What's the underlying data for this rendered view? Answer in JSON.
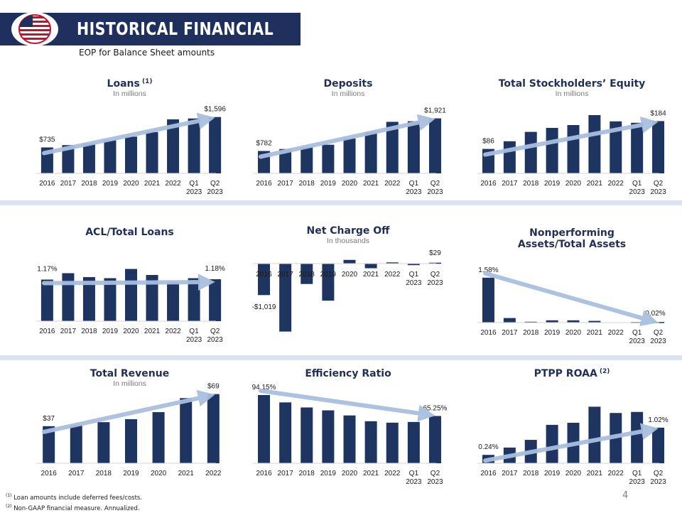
{
  "header": {
    "title": "HISTORICAL FINANCIAL",
    "subtitle": "EOP for Balance Sheet amounts"
  },
  "colors": {
    "bar": "#1f3561",
    "arrow": "#a9bfe0",
    "band": "#dbe3f1",
    "axis": "#d4d4d4",
    "title": "#1f2f57"
  },
  "footnotes": [
    {
      "mark": "(1)",
      "text": "Loan amounts include deferred fees/costs."
    },
    {
      "mark": "(2)",
      "text": "Non-GAAP financial measure. Annualized."
    }
  ],
  "page_number": "4",
  "chart_data": [
    {
      "type": "bar",
      "title": "Loans",
      "title_sup": "(1)",
      "subtitle": "In millions",
      "categories": [
        "2016",
        "2017",
        "2018",
        "2019",
        "2020",
        "2021",
        "2022",
        "Q1 2023",
        "Q2 2023"
      ],
      "values": [
        735,
        800,
        845,
        935,
        1040,
        1170,
        1530,
        1555,
        1596
      ],
      "ylim": [
        0,
        1650
      ],
      "data_labels": [
        {
          "index": 0,
          "text": "$735"
        },
        {
          "index": 8,
          "text": "$1,596"
        }
      ],
      "trend": "up"
    },
    {
      "type": "bar",
      "title": "Deposits",
      "title_sup": "",
      "subtitle": "In millions",
      "categories": [
        "2016",
        "2017",
        "2018",
        "2019",
        "2020",
        "2021",
        "2022",
        "Q1 2023",
        "Q2 2023"
      ],
      "values": [
        782,
        850,
        910,
        1000,
        1220,
        1450,
        1800,
        1820,
        1921
      ],
      "ylim": [
        0,
        1985
      ],
      "data_labels": [
        {
          "index": 0,
          "text": "$782"
        },
        {
          "index": 8,
          "text": "$1,921"
        }
      ],
      "trend": "up"
    },
    {
      "type": "bar",
      "title": "Total Stockholders’ Equity",
      "title_sup": "",
      "subtitle": "In millions",
      "categories": [
        "2016",
        "2017",
        "2018",
        "2019",
        "2020",
        "2021",
        "2022",
        "Q1 2023",
        "Q2 2023"
      ],
      "values": [
        86,
        113,
        146,
        160,
        170,
        205,
        183,
        178,
        184
      ],
      "ylim": [
        0,
        210
      ],
      "data_labels": [
        {
          "index": 0,
          "text": "$86"
        },
        {
          "index": 8,
          "text": "$184"
        }
      ],
      "trend": "up"
    },
    {
      "type": "bar",
      "title": "ACL/Total Loans",
      "title_sup": "",
      "subtitle": "",
      "categories": [
        "2016",
        "2017",
        "2018",
        "2019",
        "2020",
        "2021",
        "2022",
        "Q1 2023",
        "Q2 2023"
      ],
      "values": [
        1.17,
        1.35,
        1.24,
        1.21,
        1.47,
        1.3,
        1.1,
        1.21,
        1.18
      ],
      "ylim": [
        0,
        1.6
      ],
      "data_labels": [
        {
          "index": 0,
          "text": "1.17%"
        },
        {
          "index": 8,
          "text": "1.18%"
        }
      ],
      "trend": "flat"
    },
    {
      "type": "bar",
      "title": "Net Charge Off",
      "title_sup": "",
      "subtitle": "In thousands",
      "categories": [
        "2016",
        "2017",
        "2018",
        "2019",
        "2020",
        "2021",
        "2022",
        "Q1 2023",
        "Q2 2023"
      ],
      "values": [
        -1019,
        -2200,
        -660,
        -1200,
        120,
        -150,
        40,
        -50,
        29
      ],
      "ylim": [
        -2300,
        400
      ],
      "data_labels": [
        {
          "index": 0,
          "text": "-$1,019"
        },
        {
          "index": 8,
          "text": "$29"
        }
      ],
      "trend": "none"
    },
    {
      "type": "bar",
      "title": "Nonperforming",
      "title_line2": "Assets/Total Assets",
      "title_sup": "",
      "subtitle": "",
      "categories": [
        "2016",
        "2017",
        "2018",
        "2019",
        "2020",
        "2021",
        "2022",
        "Q1 2023",
        "Q2 2023"
      ],
      "values": [
        1.58,
        0.16,
        0.03,
        0.08,
        0.08,
        0.06,
        0.0,
        0.02,
        0.02
      ],
      "ylim": [
        0,
        1.65
      ],
      "data_labels": [
        {
          "index": 0,
          "text": "1.58%"
        },
        {
          "index": 8,
          "text": "0.02%"
        }
      ],
      "trend": "down"
    },
    {
      "type": "bar",
      "title": "Total Revenue",
      "title_sup": "",
      "subtitle": "In millions",
      "categories": [
        "2016",
        "2017",
        "2018",
        "2019",
        "2020",
        "2021",
        "2022"
      ],
      "values": [
        37,
        38,
        41,
        44,
        51,
        65,
        69
      ],
      "ylim": [
        0,
        73
      ],
      "data_labels": [
        {
          "index": 0,
          "text": "$37"
        },
        {
          "index": 6,
          "text": "$69"
        }
      ],
      "trend": "up"
    },
    {
      "type": "bar",
      "title": "Efficiency Ratio",
      "title_sup": "",
      "subtitle": "",
      "categories": [
        "2016",
        "2017",
        "2018",
        "2019",
        "2020",
        "2021",
        "2022",
        "Q1 2023",
        "Q2 2023"
      ],
      "values": [
        94.15,
        84,
        77,
        73,
        66,
        58,
        56,
        57,
        65.25
      ],
      "ylim": [
        0,
        100
      ],
      "data_labels": [
        {
          "index": 0,
          "text": "94.15%"
        },
        {
          "index": 8,
          "text": "65.25%"
        }
      ],
      "trend": "down"
    },
    {
      "type": "bar",
      "title": "PTPP ROAA",
      "title_sup": "(2)",
      "subtitle": "",
      "categories": [
        "2016",
        "2017",
        "2018",
        "2019",
        "2020",
        "2021",
        "2022",
        "Q1 2023",
        "Q2 2023"
      ],
      "values": [
        0.24,
        0.45,
        0.67,
        1.1,
        1.16,
        1.62,
        1.44,
        1.47,
        1.02
      ],
      "ylim": [
        0,
        1.75
      ],
      "data_labels": [
        {
          "index": 0,
          "text": "0.24%"
        },
        {
          "index": 8,
          "text": "1.02%"
        }
      ],
      "trend": "up"
    }
  ]
}
